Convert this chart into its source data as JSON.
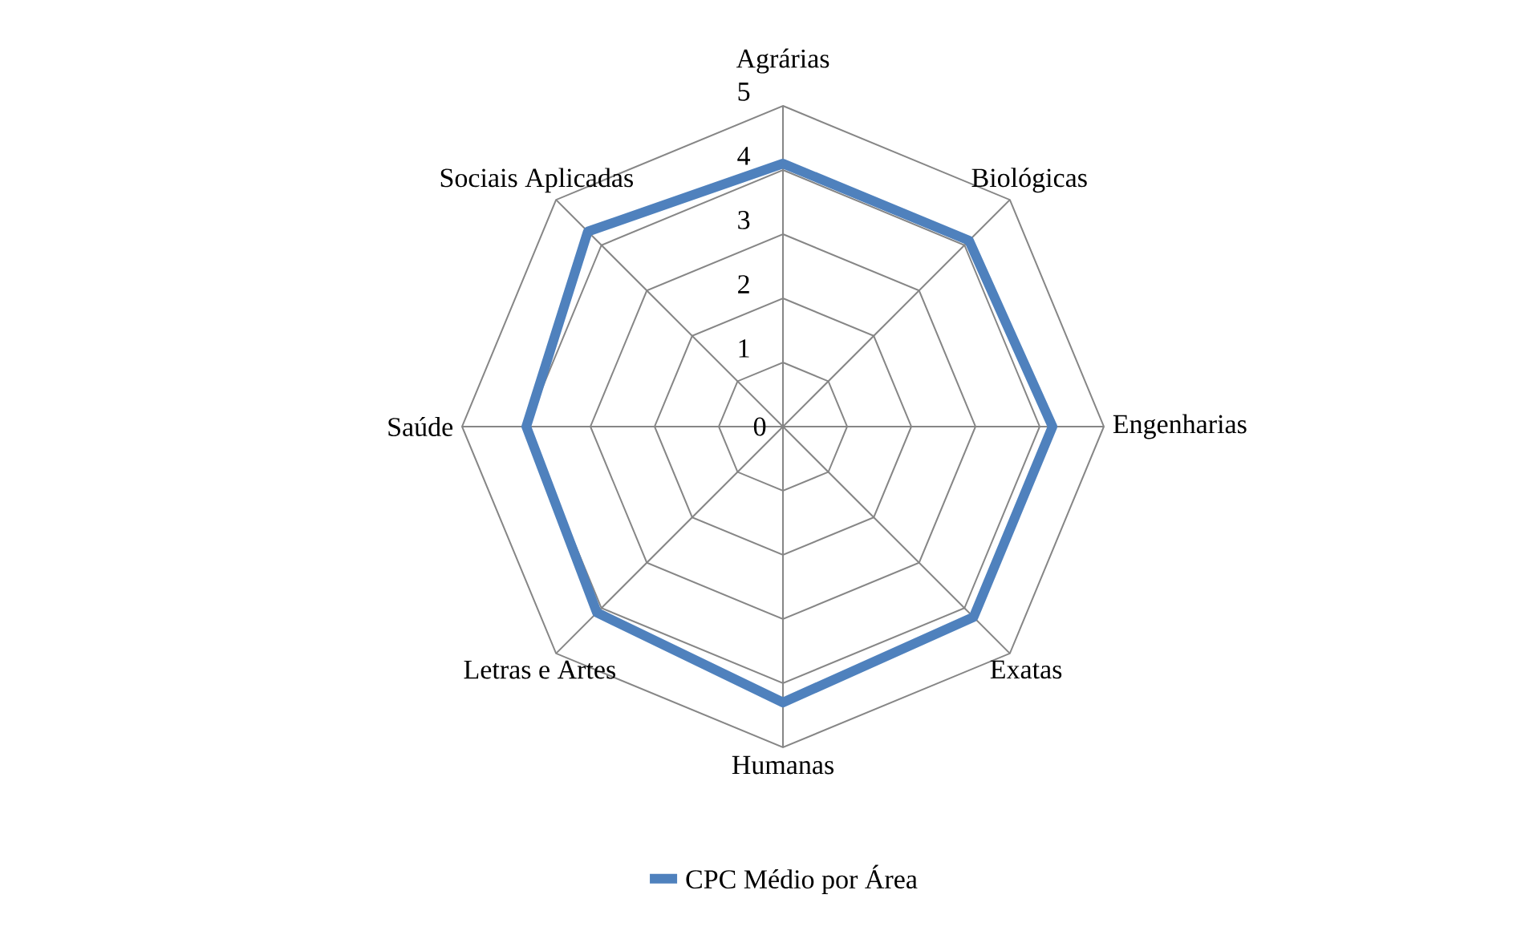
{
  "chart_data": {
    "type": "radar",
    "categories": [
      "Agrárias",
      "Biológicas",
      "Engenharias",
      "Exatas",
      "Humanas",
      "Letras e Artes",
      "Saúde",
      "Sociais Aplicadas"
    ],
    "series": [
      {
        "name": "CPC Médio por Área",
        "color": "#4f81bd",
        "values": [
          4.1,
          4.1,
          4.2,
          4.2,
          4.3,
          4.1,
          4.0,
          4.3
        ]
      }
    ],
    "ylim": [
      0,
      5
    ],
    "yticks": [
      0,
      1,
      2,
      3,
      4,
      5
    ],
    "grid": true,
    "legend": "bottom"
  }
}
